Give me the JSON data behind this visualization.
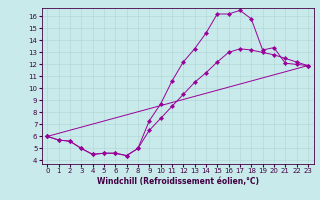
{
  "xlabel": "Windchill (Refroidissement éolien,°C)",
  "bg_color": "#c8eaea",
  "line_color": "#990099",
  "xlim": [
    -0.5,
    23.5
  ],
  "ylim": [
    3.7,
    16.7
  ],
  "xticks": [
    0,
    1,
    2,
    3,
    4,
    5,
    6,
    7,
    8,
    9,
    10,
    11,
    12,
    13,
    14,
    15,
    16,
    17,
    18,
    19,
    20,
    21,
    22,
    23
  ],
  "yticks": [
    4,
    5,
    6,
    7,
    8,
    9,
    10,
    11,
    12,
    13,
    14,
    15,
    16
  ],
  "line1_x": [
    0,
    1,
    2,
    3,
    4,
    5,
    6,
    7,
    8,
    9,
    10,
    11,
    12,
    13,
    14,
    15,
    16,
    17,
    18,
    19,
    20,
    21,
    22,
    23
  ],
  "line1_y": [
    6.0,
    5.7,
    5.6,
    5.0,
    4.5,
    4.6,
    4.6,
    4.4,
    5.0,
    7.3,
    8.7,
    10.6,
    12.2,
    13.3,
    14.6,
    16.2,
    16.2,
    16.5,
    15.8,
    13.2,
    13.4,
    12.1,
    12.0,
    11.9
  ],
  "line2_x": [
    0,
    1,
    2,
    3,
    4,
    5,
    6,
    7,
    8,
    9,
    10,
    11,
    12,
    13,
    14,
    15,
    16,
    17,
    18,
    19,
    20,
    21,
    22,
    23
  ],
  "line2_y": [
    6.0,
    5.7,
    5.6,
    5.0,
    4.5,
    4.6,
    4.6,
    4.4,
    5.0,
    6.5,
    7.5,
    8.5,
    9.5,
    10.5,
    11.3,
    12.2,
    13.0,
    13.3,
    13.2,
    13.0,
    12.8,
    12.5,
    12.2,
    11.9
  ],
  "line3_x": [
    0,
    23
  ],
  "line3_y": [
    6.0,
    11.9
  ],
  "grid_color": "#b0d4d4",
  "xlabel_fontsize": 5.5,
  "tick_fontsize": 5,
  "marker": "D",
  "markersize": 2.2,
  "linewidth": 0.7
}
